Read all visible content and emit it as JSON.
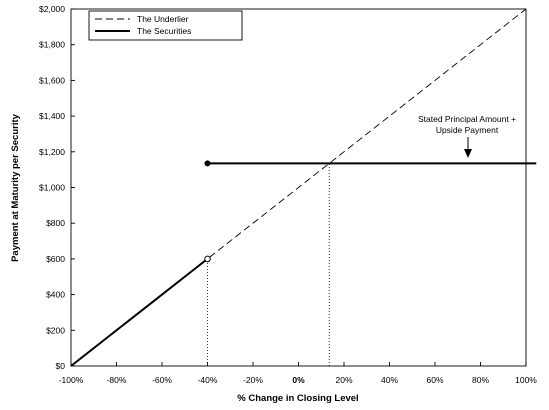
{
  "chart_data": {
    "type": "line",
    "xlabel": "% Change in Closing Level",
    "ylabel": "Payment at Maturity per Security",
    "xlim": [
      -100,
      100
    ],
    "ylim": [
      0,
      2000
    ],
    "x_ticks": [
      -100,
      -80,
      -60,
      -40,
      -20,
      0,
      20,
      40,
      60,
      80,
      100
    ],
    "x_tick_labels": [
      "-100%",
      "-80%",
      "-60%",
      "-40%",
      "-20%",
      "0%",
      "20%",
      "40%",
      "60%",
      "80%",
      "100%"
    ],
    "y_ticks": [
      0,
      200,
      400,
      600,
      800,
      1000,
      1200,
      1400,
      1600,
      1800,
      2000
    ],
    "y_tick_labels": [
      "$0",
      "$200",
      "$400",
      "$600",
      "$800",
      "$1,000",
      "$1,200",
      "$1,400",
      "$1,600",
      "$1,800",
      "$2,000"
    ],
    "grid": false,
    "legend_position": "top-left",
    "series": [
      {
        "name": "The Underlier",
        "style": "dashed",
        "color": "#000000",
        "x": [
          -100,
          100
        ],
        "y": [
          0,
          2000
        ]
      },
      {
        "name": "The Securities",
        "style": "solid",
        "color": "#000000",
        "segments": [
          {
            "x": [
              -100,
              -40
            ],
            "y": [
              0,
              600
            ],
            "end_marker": "open"
          },
          {
            "x": [
              -40,
              104.5
            ],
            "y": [
              1135,
              1135
            ],
            "start_marker": "filled"
          }
        ]
      }
    ],
    "reference_lines": [
      {
        "x": -40,
        "y_from": 0,
        "y_to": 600,
        "style": "dotted"
      },
      {
        "x": 13.5,
        "y_from": 0,
        "y_to": 1135,
        "style": "dotted"
      }
    ],
    "annotations": [
      {
        "lines": [
          "Stated Principal Amount +",
          "Upside Payment"
        ],
        "x": 73,
        "y": 1135,
        "arrow": true
      }
    ]
  }
}
